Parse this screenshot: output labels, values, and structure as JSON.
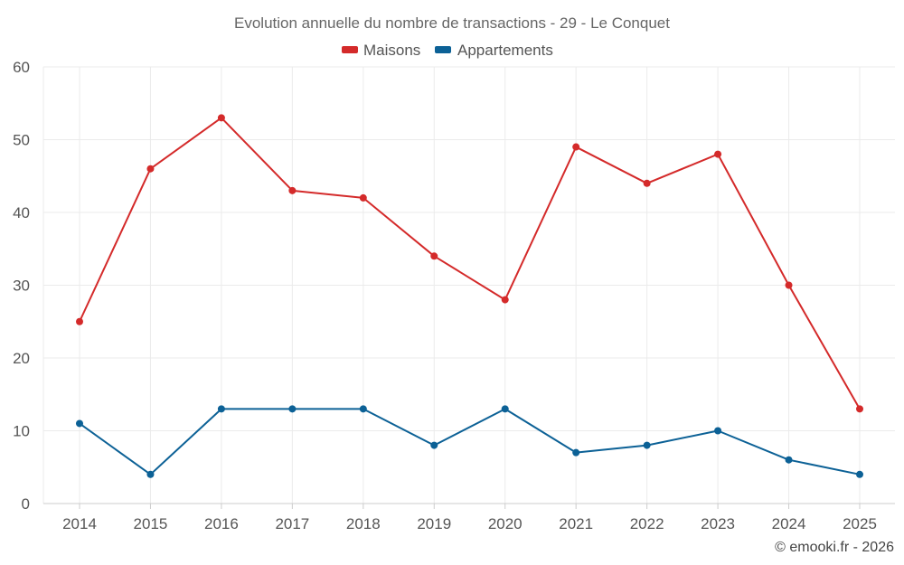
{
  "chart_data": {
    "type": "line",
    "title": "Evolution annuelle du nombre de transactions - 29 - Le Conquet",
    "categories": [
      "2014",
      "2015",
      "2016",
      "2017",
      "2018",
      "2019",
      "2020",
      "2021",
      "2022",
      "2023",
      "2024",
      "2025"
    ],
    "series": [
      {
        "name": "Maisons",
        "color": "#d42a2a",
        "values": [
          25,
          46,
          53,
          43,
          42,
          34,
          28,
          49,
          44,
          48,
          30,
          13
        ]
      },
      {
        "name": "Appartements",
        "color": "#0c6196",
        "values": [
          11,
          4,
          13,
          13,
          13,
          8,
          13,
          7,
          8,
          10,
          6,
          4
        ]
      }
    ],
    "ylim": [
      0,
      60
    ],
    "yticks": [
      0,
      10,
      20,
      30,
      40,
      50,
      60
    ],
    "xlabel": "",
    "ylabel": "",
    "grid": true,
    "legend_position": "top-center"
  },
  "credit": "© emooki.fr - 2026"
}
